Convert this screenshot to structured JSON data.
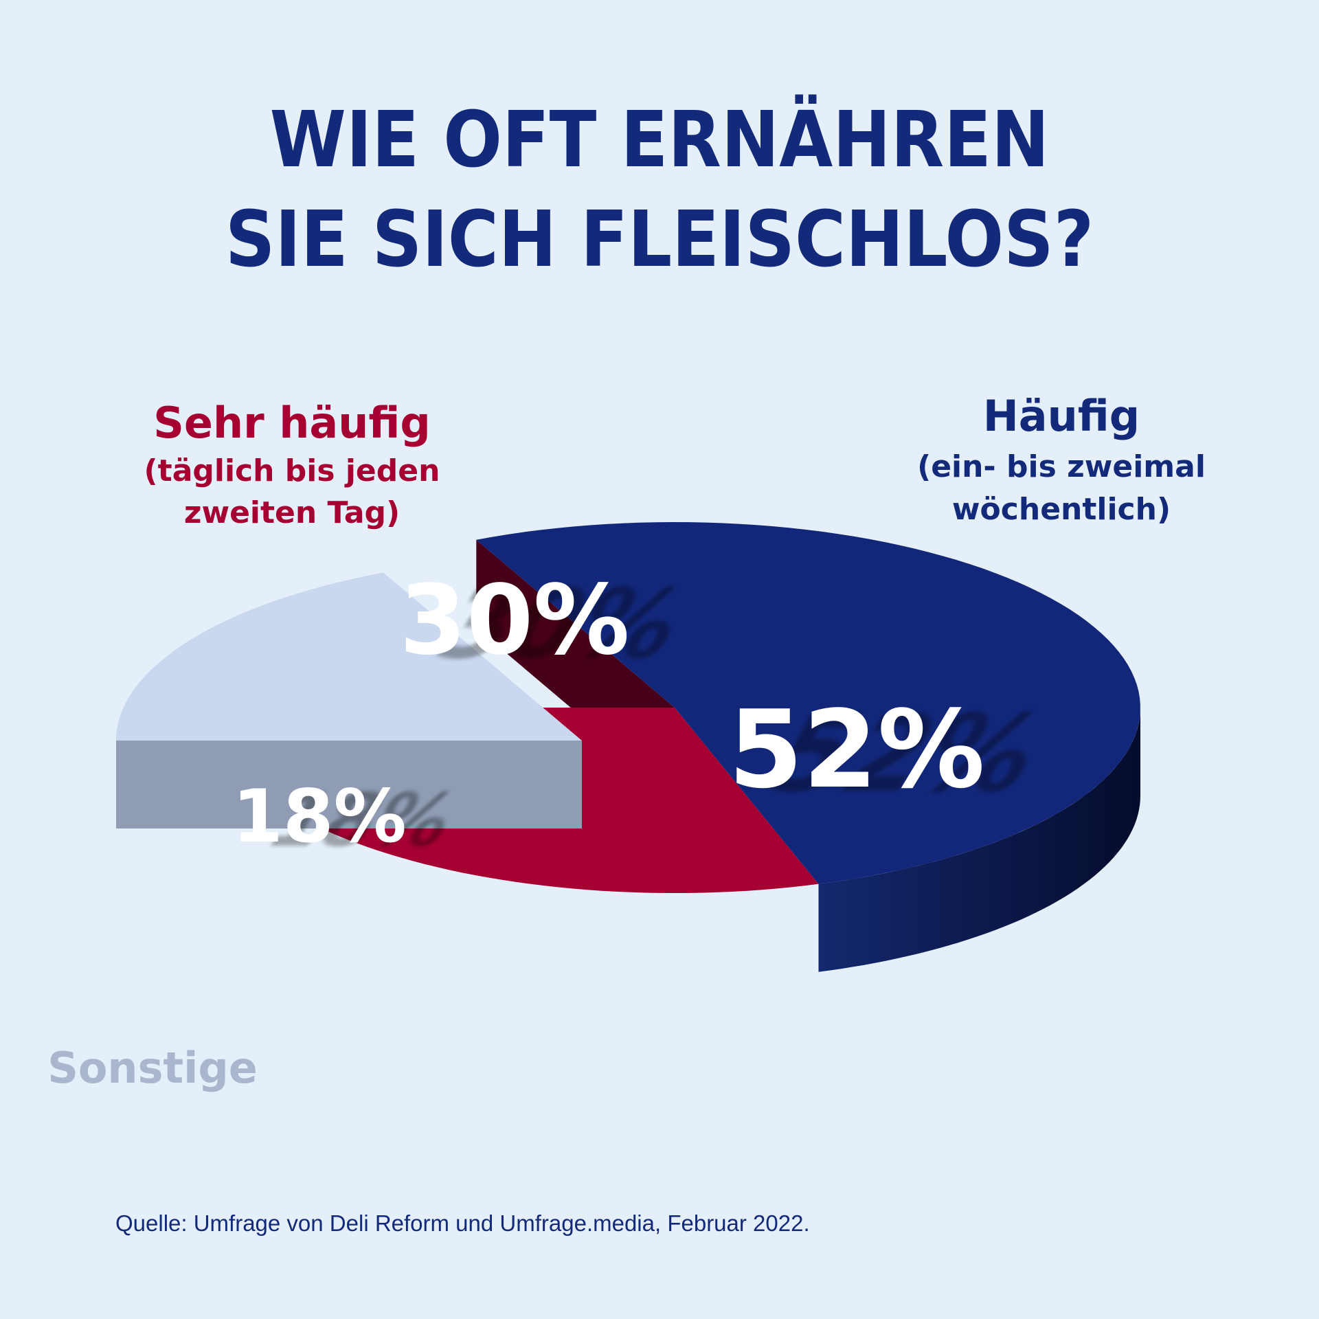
{
  "title": {
    "line1": "WIE OFT ERNÄHREN",
    "line2": "SIE SICH FLEISCHLOS?"
  },
  "colors": {
    "background": "#e4eff9",
    "title": "#13297a",
    "red": "#a50031",
    "red_side": "#47001a",
    "blue": "#12277a",
    "blue_side": "#0b1850",
    "light": "#c9d7ef",
    "light_side": "#a3b0c8",
    "light_label": "#a9b6cd",
    "pct_text": "#ffffff"
  },
  "chart_data": {
    "type": "pie",
    "slices": [
      {
        "name": "Sehr häufig",
        "detail": [
          "(täglich bis jeden",
          "zweiten Tag)"
        ],
        "value": 30,
        "label": "30%",
        "color": "#a50031"
      },
      {
        "name": "Häufig",
        "detail": [
          "(ein- bis zweimal",
          "wöchentlich)"
        ],
        "value": 52,
        "label": "52%",
        "color": "#12277a"
      },
      {
        "name": "Sonstige",
        "detail": [],
        "value": 18,
        "label": "18%",
        "color": "#c9d7ef"
      }
    ],
    "exploded": "Sonstige"
  },
  "source": "Quelle: Umfrage von Deli Reform und Umfrage.media, Februar 2022."
}
